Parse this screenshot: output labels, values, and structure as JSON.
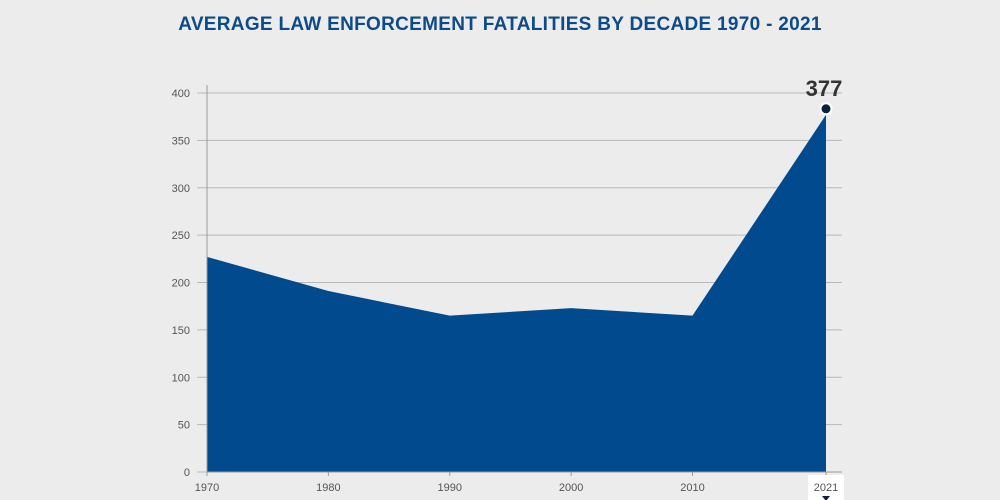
{
  "chart_data": {
    "type": "area",
    "title": "AVERAGE LAW ENFORCEMENT FATALITIES BY DECADE 1970 - 2021",
    "x": [
      1970,
      1980,
      1990,
      2000,
      2010,
      2021
    ],
    "xticklabels": [
      "1970",
      "1980",
      "1990",
      "2000",
      "2010",
      "2021"
    ],
    "values": [
      227,
      191,
      165,
      173,
      165,
      377
    ],
    "ylim": [
      0,
      400
    ],
    "yticks": [
      0,
      50,
      100,
      150,
      200,
      250,
      300,
      350,
      400
    ],
    "yticklabels": [
      "0",
      "50",
      "100",
      "150",
      "200",
      "250",
      "300",
      "350",
      "400"
    ],
    "highlight": {
      "x": 2021,
      "value": 377,
      "label": "377"
    },
    "xlabel": "",
    "ylabel": "",
    "grid": true,
    "colors": {
      "area": "#004a8d",
      "marker": "#0a2240",
      "title": "#0d4a8a",
      "grid": "#b8b8b8"
    }
  }
}
